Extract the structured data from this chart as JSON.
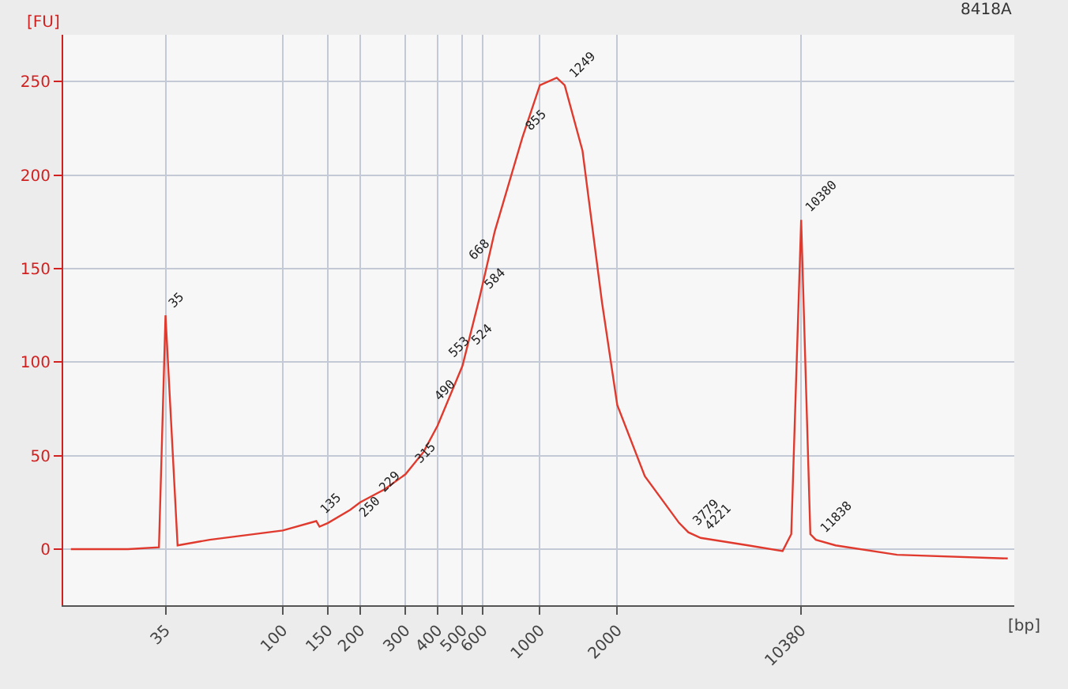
{
  "chart_data": {
    "type": "line",
    "xlabel": "[bp]",
    "ylabel": "[FU]",
    "log": "x",
    "grid": true,
    "marker": "none",
    "line_style": "solid",
    "xlim": [
      14,
      70000
    ],
    "ylim": [
      -30,
      275
    ],
    "xticks": [
      35,
      100,
      150,
      200,
      300,
      400,
      500,
      600,
      1000,
      2000,
      10380
    ],
    "yticks": [
      0,
      50,
      100,
      150,
      200,
      250
    ],
    "series": [
      {
        "color": "#e03a2e",
        "x": [
          15,
          25,
          33,
          35,
          39,
          52,
          100,
          135,
          139,
          150,
          183,
          200,
          249,
          300,
          353,
          400,
          500,
          584,
          668,
          855,
          1000,
          1163,
          1249,
          1465,
          1744,
          2000,
          2560,
          3480,
          3779,
          4221,
          6460,
          8790,
          9500,
          10380,
          11270,
          11838,
          14130,
          24500,
          66000
        ],
        "values": [
          0,
          0,
          1,
          125,
          2,
          5,
          10,
          15,
          12,
          14,
          21,
          25,
          32,
          40,
          52,
          66,
          98,
          135,
          170,
          220,
          248,
          252,
          248,
          213,
          132,
          77,
          39,
          14,
          9,
          6,
          2,
          -1,
          8,
          176,
          8,
          5,
          2,
          -3,
          -5
        ]
      }
    ],
    "annotations": [
      {
        "text": "35",
        "x": 35,
        "y": 125
      },
      {
        "text": "135",
        "x": 135,
        "y": 15
      },
      {
        "text": "229",
        "x": 229,
        "y": 27
      },
      {
        "text": "250",
        "x": 250,
        "y": 32
      },
      {
        "text": "315",
        "x": 315,
        "y": 42
      },
      {
        "text": "490",
        "x": 490,
        "y": 95
      },
      {
        "text": "524",
        "x": 524,
        "y": 105
      },
      {
        "text": "553",
        "x": 553,
        "y": 118
      },
      {
        "text": "584",
        "x": 584,
        "y": 135
      },
      {
        "text": "668",
        "x": 668,
        "y": 170
      },
      {
        "text": "855",
        "x": 855,
        "y": 220
      },
      {
        "text": "1249",
        "x": 1249,
        "y": 248
      },
      {
        "text": "3779",
        "x": 3779,
        "y": 9
      },
      {
        "text": "4221",
        "x": 4221,
        "y": 6
      },
      {
        "text": "10380",
        "x": 10380,
        "y": 176
      },
      {
        "text": "11838",
        "x": 11838,
        "y": 5
      },
      "8418A"
    ]
  }
}
